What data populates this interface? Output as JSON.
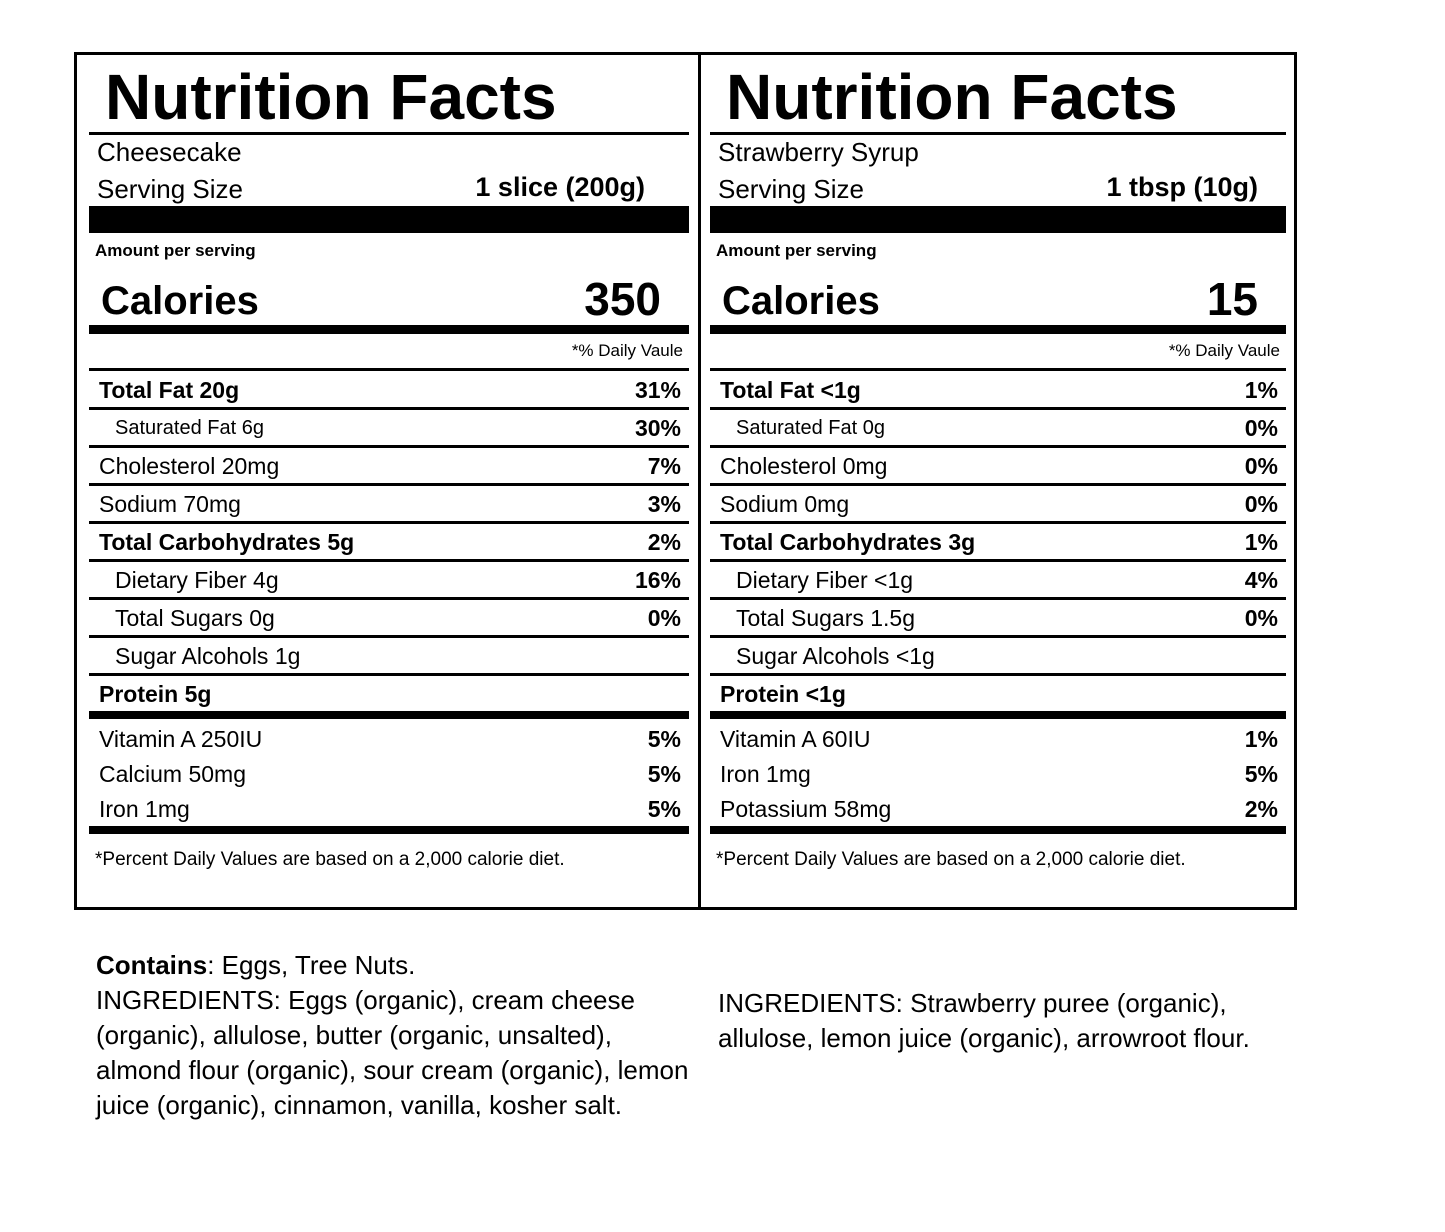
{
  "left": {
    "title": "Nutrition Facts",
    "product": "Cheesecake",
    "serving_label": "Serving Size",
    "serving_value": "1 slice (200g)",
    "amount_per": "Amount per serving",
    "calories_label": "Calories",
    "calories_value": "350",
    "dv_header": "*% Daily Vaule",
    "rows": [
      {
        "label": "Total Fat 20g",
        "pct": "31%"
      },
      {
        "label": "Saturated Fat 6g",
        "pct": "30%"
      },
      {
        "label": "Cholesterol 20mg",
        "pct": "7%"
      },
      {
        "label": "Sodium 70mg",
        "pct": "3%"
      },
      {
        "label": "Total Carbohydrates 5g",
        "pct": "2%"
      },
      {
        "label": "Dietary Fiber 4g",
        "pct": "16%"
      },
      {
        "label": "Total Sugars 0g",
        "pct": "0%"
      },
      {
        "label": "Sugar Alcohols 1g",
        "pct": ""
      },
      {
        "label": "Protein 5g",
        "pct": ""
      }
    ],
    "vitamins": [
      {
        "label": "Vitamin A 250IU",
        "pct": "5%"
      },
      {
        "label": "Calcium 50mg",
        "pct": "5%"
      },
      {
        "label": "Iron 1mg",
        "pct": "5%"
      }
    ],
    "footnote": "*Percent Daily Values are based on a 2,000 calorie diet."
  },
  "right": {
    "title": "Nutrition Facts",
    "product": "Strawberry Syrup",
    "serving_label": "Serving Size",
    "serving_value": "1 tbsp (10g)",
    "amount_per": "Amount per serving",
    "calories_label": "Calories",
    "calories_value": "15",
    "dv_header": "*% Daily Vaule",
    "rows": [
      {
        "label": "Total Fat <1g",
        "pct": "1%"
      },
      {
        "label": "Saturated Fat 0g",
        "pct": "0%"
      },
      {
        "label": "Cholesterol 0mg",
        "pct": "0%"
      },
      {
        "label": "Sodium 0mg",
        "pct": "0%"
      },
      {
        "label": "Total Carbohydrates 3g",
        "pct": "1%"
      },
      {
        "label": "Dietary Fiber <1g",
        "pct": "4%"
      },
      {
        "label": "Total Sugars 1.5g",
        "pct": "0%"
      },
      {
        "label": "Sugar Alcohols <1g",
        "pct": ""
      },
      {
        "label": "Protein <1g",
        "pct": ""
      }
    ],
    "vitamins": [
      {
        "label": "Vitamin A 60IU",
        "pct": "1%"
      },
      {
        "label": "Iron 1mg",
        "pct": "5%"
      },
      {
        "label": "Potassium 58mg",
        "pct": "2%"
      }
    ],
    "footnote": "*Percent Daily Values are based on a 2,000 calorie diet."
  },
  "below_left": {
    "contains_key": "Contains",
    "contains_value": ": Eggs, Tree Nuts.",
    "ingredients": "INGREDIENTS: Eggs (organic), cream cheese (organic), allulose, butter (organic, unsalted), almond flour (organic), sour cream (organic), lemon juice (organic), cinnamon, vanilla, kosher salt."
  },
  "below_right": {
    "ingredients": "INGREDIENTS: Strawberry puree (organic), allulose, lemon juice (organic), arrowroot flour."
  }
}
